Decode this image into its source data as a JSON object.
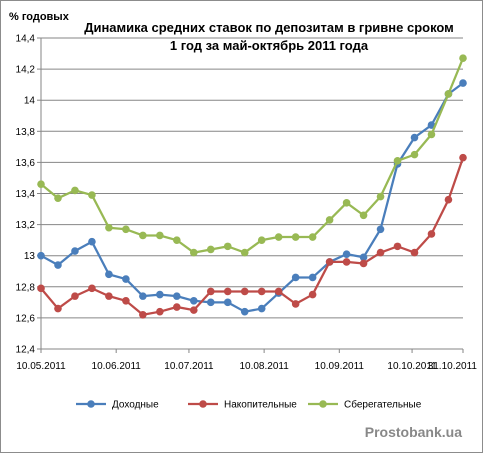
{
  "chart_data": {
    "type": "line",
    "title_line1": "Динамика средних ставок по депозитам в гривне сроком",
    "title_line2": "1 год за май-октябрь 2011  года",
    "ylabel": "% годовых",
    "ylim": [
      12.4,
      14.4
    ],
    "yticks": [
      "12,4",
      "12,6",
      "12,8",
      "13",
      "13,2",
      "13,4",
      "13,6",
      "13,8",
      "14",
      "14,2",
      "14,4"
    ],
    "yticks_values": [
      12.4,
      12.6,
      12.8,
      13.0,
      13.2,
      13.4,
      13.6,
      13.8,
      14.0,
      14.2,
      14.4
    ],
    "xlim": [
      "2011-05-10",
      "2011-10-31"
    ],
    "xticks": [
      {
        "label": "10.05.2011",
        "date": "2011-05-10"
      },
      {
        "label": "10.06.2011",
        "date": "2011-06-10"
      },
      {
        "label": "10.07.2011",
        "date": "2011-07-10"
      },
      {
        "label": "10.08.2011",
        "date": "2011-08-10"
      },
      {
        "label": "10.09.2011",
        "date": "2011-09-10"
      },
      {
        "label": "10.10.2011",
        "date": "2011-10-10"
      },
      {
        "label": "31.10.2011",
        "date": "2011-10-31"
      }
    ],
    "x": [
      "2011-05-10",
      "2011-05-17",
      "2011-05-24",
      "2011-05-31",
      "2011-06-07",
      "2011-06-14",
      "2011-06-21",
      "2011-06-28",
      "2011-07-05",
      "2011-07-12",
      "2011-07-19",
      "2011-07-26",
      "2011-08-02",
      "2011-08-09",
      "2011-08-16",
      "2011-08-23",
      "2011-08-30",
      "2011-09-06",
      "2011-09-13",
      "2011-09-20",
      "2011-09-27",
      "2011-10-04",
      "2011-10-11",
      "2011-10-18",
      "2011-10-25",
      "2011-10-31"
    ],
    "series": [
      {
        "name": "Доходные",
        "color": "#4a7ebb",
        "values": [
          13.0,
          12.94,
          13.03,
          13.09,
          12.88,
          12.85,
          12.74,
          12.75,
          12.74,
          12.71,
          12.7,
          12.7,
          12.64,
          12.66,
          12.76,
          12.86,
          12.86,
          12.96,
          13.01,
          12.99,
          13.17,
          13.59,
          13.76,
          13.84,
          14.04,
          14.11
        ]
      },
      {
        "name": "Накопительные",
        "color": "#be4b48",
        "values": [
          12.79,
          12.66,
          12.74,
          12.79,
          12.74,
          12.71,
          12.62,
          12.64,
          12.67,
          12.65,
          12.77,
          12.77,
          12.77,
          12.77,
          12.77,
          12.69,
          12.75,
          12.96,
          12.96,
          12.95,
          13.02,
          13.06,
          13.02,
          13.14,
          13.36,
          13.63
        ]
      },
      {
        "name": "Сберегательные",
        "color": "#98b954",
        "values": [
          13.46,
          13.37,
          13.42,
          13.39,
          13.18,
          13.17,
          13.13,
          13.13,
          13.1,
          13.02,
          13.04,
          13.06,
          13.02,
          13.1,
          13.12,
          13.12,
          13.12,
          13.23,
          13.34,
          13.26,
          13.38,
          13.61,
          13.65,
          13.78,
          14.04,
          14.27
        ]
      }
    ],
    "grid": "horizontal",
    "legend": "bottom",
    "watermark": "Prostobank.ua"
  }
}
